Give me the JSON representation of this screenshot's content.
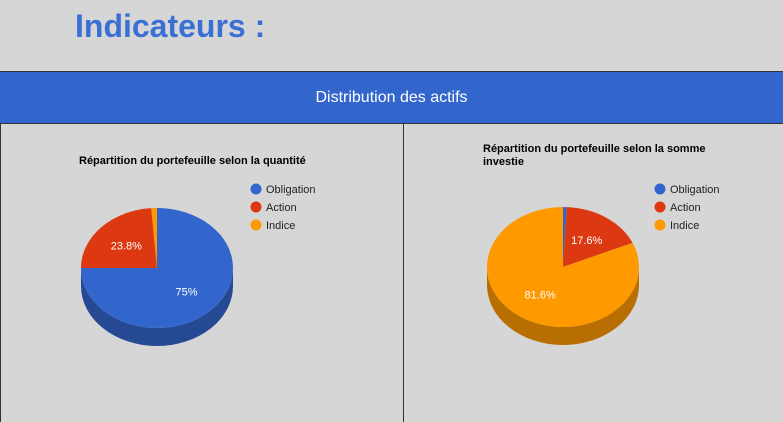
{
  "page": {
    "title": "Indicateurs :",
    "section_title": "Distribution des actifs"
  },
  "chart_data": [
    {
      "type": "pie",
      "style": "3d",
      "title_lines": [
        "Répartition du portefeuille selon la quantité"
      ],
      "categories": [
        "Obligation",
        "Action",
        "Indice"
      ],
      "values": [
        75,
        23.8,
        1.2
      ],
      "labels": [
        "75%",
        "23.8%",
        ""
      ],
      "colors": [
        "#3366cc",
        "#dc3912",
        "#ff9900"
      ],
      "legend": "right"
    },
    {
      "type": "pie",
      "style": "3d",
      "title_lines": [
        "Répartition du portefeuille selon la somme",
        "investie"
      ],
      "categories": [
        "Obligation",
        "Action",
        "Indice"
      ],
      "values": [
        0.8,
        17.6,
        81.6
      ],
      "labels": [
        "",
        "17.6%",
        "81.6%"
      ],
      "colors": [
        "#3366cc",
        "#dc3912",
        "#ff9900"
      ],
      "legend": "right"
    }
  ]
}
